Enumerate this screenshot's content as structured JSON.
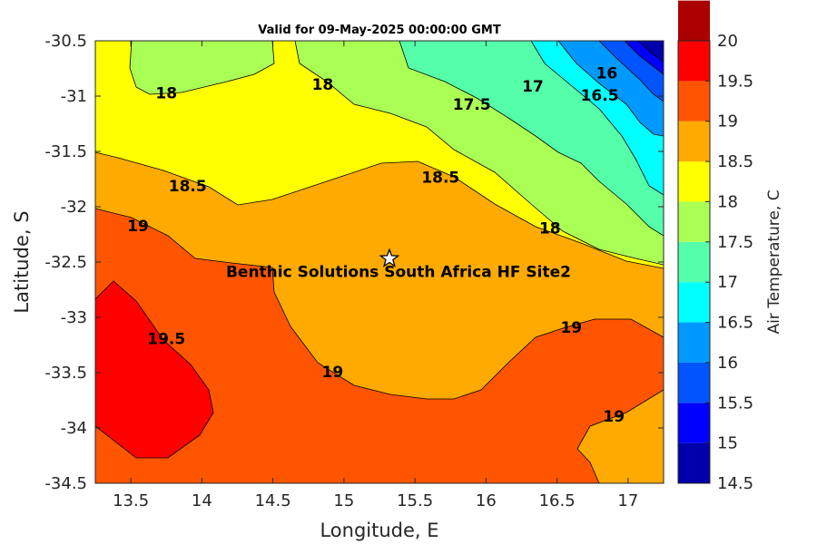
{
  "chart_data": {
    "type": "heatmap",
    "title": "Valid for 09-May-2025 00:00:00 GMT",
    "xlabel": "Longitude, E",
    "ylabel": "Latitude, S",
    "xlim": [
      13.25,
      17.25
    ],
    "ylim": [
      -34.5,
      -30.5
    ],
    "x_ticks": [
      "13.5",
      "14",
      "14.5",
      "15",
      "15.5",
      "16",
      "16.5",
      "17"
    ],
    "y_ticks": [
      "-30.5",
      "-31",
      "-31.5",
      "-32",
      "-32.5",
      "-33",
      "-33.5",
      "-34",
      "-34.5"
    ],
    "colorbar": {
      "label": "Air Temperature, C",
      "range": [
        14.5,
        20
      ],
      "ticks": [
        "14.5",
        "15",
        "15.5",
        "16",
        "16.5",
        "17",
        "17.5",
        "18",
        "18.5",
        "19",
        "19.5",
        "20"
      ],
      "colors": [
        "#0000aa",
        "#0000ff",
        "#0055ff",
        "#0099ff",
        "#00ffff",
        "#55ffaa",
        "#aaff55",
        "#ffff00",
        "#ffaa00",
        "#ff5500",
        "#ff0000",
        "#aa0000"
      ]
    },
    "contour_levels": [
      16,
      16.5,
      17,
      17.5,
      18,
      18.5,
      19,
      19.5
    ],
    "contour_labels": [
      {
        "text": "18",
        "lon": 13.75,
        "lat": -30.98
      },
      {
        "text": "18",
        "lon": 14.85,
        "lat": -30.9
      },
      {
        "text": "17.5",
        "lon": 15.9,
        "lat": -31.08
      },
      {
        "text": "17",
        "lon": 16.33,
        "lat": -30.92
      },
      {
        "text": "16",
        "lon": 16.85,
        "lat": -30.8
      },
      {
        "text": "16.5",
        "lon": 16.8,
        "lat": -31.0
      },
      {
        "text": "18.5",
        "lon": 13.9,
        "lat": -31.82
      },
      {
        "text": "18.5",
        "lon": 15.68,
        "lat": -31.74
      },
      {
        "text": "18",
        "lon": 16.45,
        "lat": -32.2
      },
      {
        "text": "19",
        "lon": 13.55,
        "lat": -32.18
      },
      {
        "text": "19.5",
        "lon": 13.75,
        "lat": -33.2
      },
      {
        "text": "19",
        "lon": 14.92,
        "lat": -33.5
      },
      {
        "text": "19",
        "lon": 16.6,
        "lat": -33.1
      },
      {
        "text": "19",
        "lon": 16.9,
        "lat": -33.9
      }
    ],
    "site": {
      "name": "Benthic Solutions South Africa HF Site2",
      "lon": 15.32,
      "lat": -32.47
    }
  }
}
